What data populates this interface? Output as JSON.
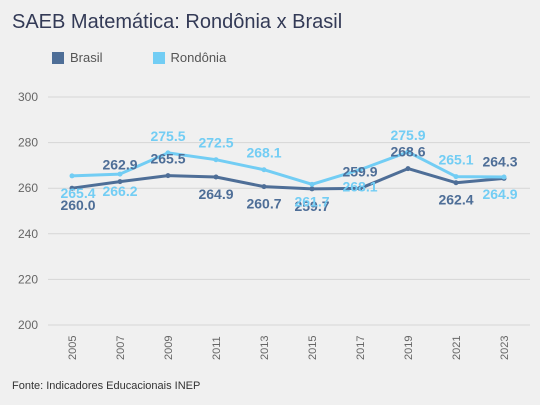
{
  "chart_data": {
    "type": "line",
    "title": "SAEB Matemática: Rondônia x Brasil",
    "categories": [
      "2005",
      "2007",
      "2009",
      "2011",
      "2013",
      "2015",
      "2017",
      "2019",
      "2021",
      "2023"
    ],
    "series": [
      {
        "name": "Brasil",
        "color": "#4e6e97",
        "values": [
          260.0,
          262.9,
          265.5,
          264.9,
          260.7,
          259.7,
          259.9,
          268.6,
          262.4,
          264.3
        ],
        "labels": [
          "260.0",
          "262.9",
          "265.5",
          "264.9",
          "260.7",
          "259.7",
          "259.9",
          "268.6",
          "262.4",
          "264.3"
        ]
      },
      {
        "name": "Rondônia",
        "color": "#72cdf4",
        "values": [
          265.4,
          266.2,
          275.5,
          272.5,
          268.1,
          261.7,
          268.1,
          275.9,
          265.1,
          264.9
        ],
        "labels": [
          "265.4",
          "266.2",
          "275.5",
          "272.5",
          "268.1",
          "261.7",
          "268.1",
          "275.9",
          "265.1",
          "264.9"
        ]
      }
    ],
    "ylim": [
      200,
      300
    ],
    "yticks": [
      "300",
      "280",
      "260",
      "240",
      "220",
      "200"
    ],
    "grid": true,
    "legend": "top-left"
  },
  "source": "Fonte: Indicadores Educacionais INEP"
}
